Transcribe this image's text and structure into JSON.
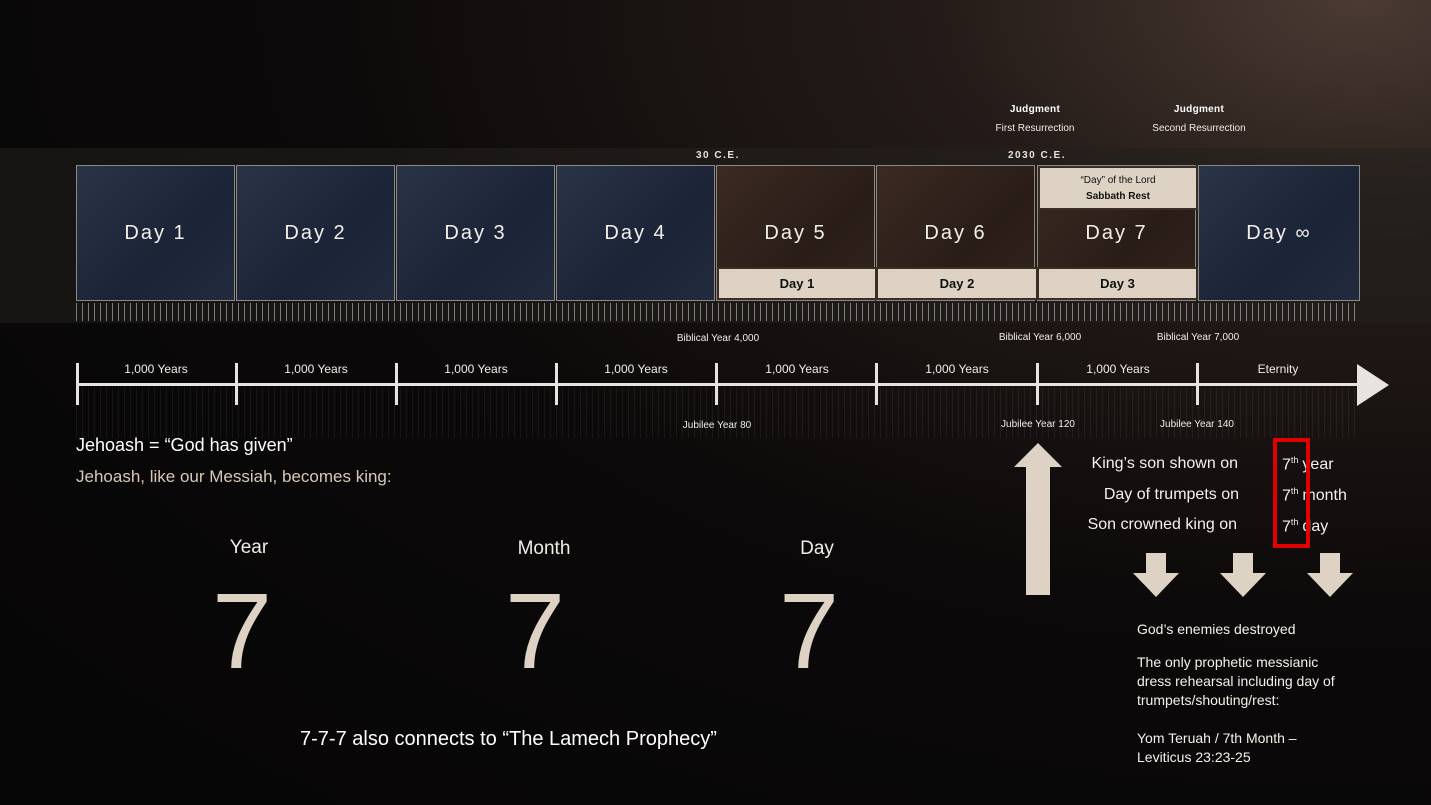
{
  "header": {
    "judgment1": {
      "title": "Judgment",
      "sub": "First Resurrection"
    },
    "judgment2": {
      "title": "Judgment",
      "sub": "Second Resurrection"
    },
    "year_30": "30 C.E.",
    "year_2030": "2030 C.E."
  },
  "days": [
    "Day 1",
    "Day 2",
    "Day 3",
    "Day 4",
    "Day 5",
    "Day 6",
    "Day 7",
    "Day ∞"
  ],
  "lord_day": {
    "line1": "“Day” of the Lord",
    "line2": "Sabbath Rest"
  },
  "sub_days": [
    "Day 1",
    "Day 2",
    "Day 3"
  ],
  "timeline": {
    "segments": [
      "1,000 Years",
      "1,000 Years",
      "1,000 Years",
      "1,000 Years",
      "1,000 Years",
      "1,000 Years",
      "1,000 Years",
      "Eternity"
    ],
    "biblical": [
      "Biblical Year 4,000",
      "Biblical Year 6,000",
      "Biblical Year 7,000"
    ],
    "jubilee": [
      "Jubilee Year 80",
      "Jubilee Year 120",
      "Jubilee Year 140"
    ]
  },
  "jehoash": {
    "line1": "Jehoash = “God has given”",
    "line2": "Jehoash, like our Messiah, becomes king:"
  },
  "sevens": [
    {
      "label": "Year",
      "value": "7"
    },
    {
      "label": "Month",
      "value": "7"
    },
    {
      "label": "Day",
      "value": "7"
    }
  ],
  "lamech": "7-7-7 also connects to “The Lamech Prophecy”",
  "king_events": [
    {
      "text": "King’s son shown on",
      "num": "7",
      "sup": "th",
      "unit": "year"
    },
    {
      "text": "Day of trumpets on",
      "num": "7",
      "sup": "th",
      "unit": "month"
    },
    {
      "text": "Son crowned king on",
      "num": "7",
      "sup": "th",
      "unit": "day"
    }
  ],
  "notes": {
    "enemies": "God’s enemies destroyed",
    "rehearsal": "The only prophetic messianic dress rehearsal including day of trumpets/shouting/rest:",
    "yom": "Yom Teruah / 7th Month – Leviticus 23:23-25"
  },
  "colors": {
    "beige": "#ddd2c3",
    "highlight_red": "#e00000",
    "arrow": "#e6e3e0"
  }
}
